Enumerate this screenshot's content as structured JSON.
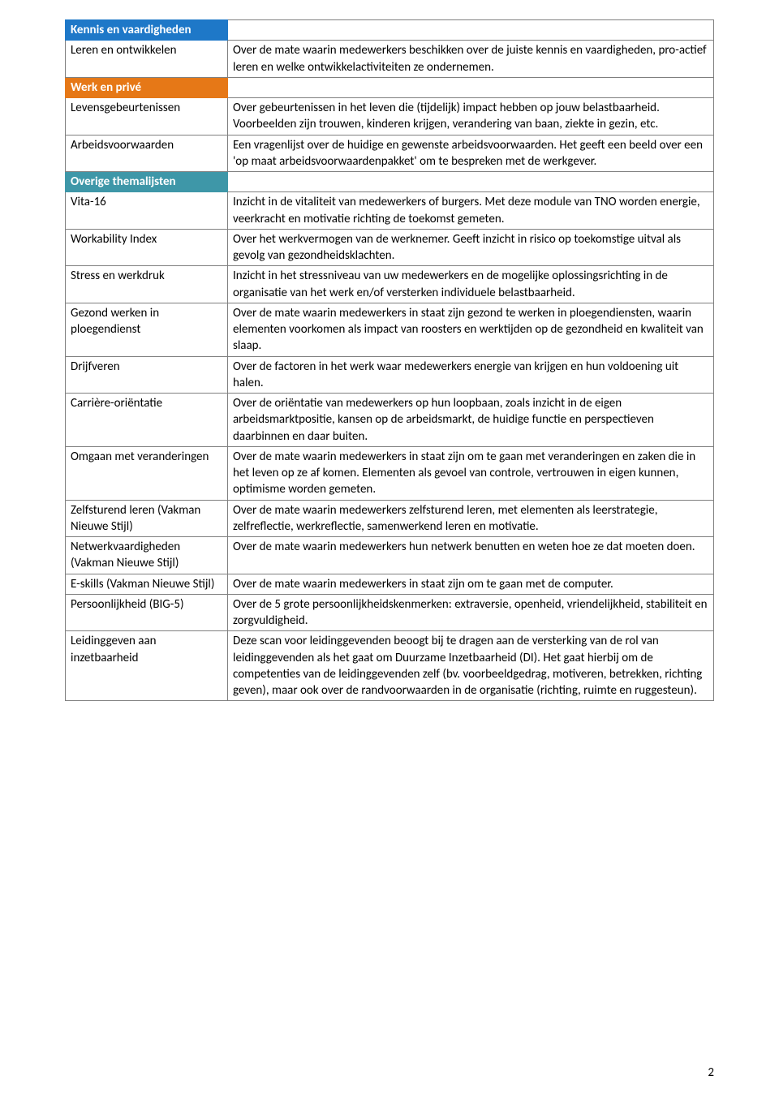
{
  "sections": {
    "blue": {
      "title": "Kennis en vaardigheden"
    },
    "orange": {
      "title": "Werk en privé"
    },
    "teal": {
      "title": "Overige themalijsten"
    }
  },
  "rows": {
    "leren": {
      "label": "Leren en ontwikkelen",
      "desc": "Over de mate waarin medewerkers beschikken over de juiste kennis en vaardigheden, pro-actief leren en welke ontwikkelactiviteiten ze ondernemen."
    },
    "levens": {
      "label": "Levensgebeurtenissen",
      "desc": "Over gebeurtenissen in het leven die (tijdelijk) impact hebben op jouw belastbaarheid. Voorbeelden zijn trouwen, kinderen krijgen, verandering van baan, ziekte in gezin, etc."
    },
    "arbeids": {
      "label": "Arbeidsvoorwaarden",
      "desc": "Een vragenlijst over de huidige en gewenste arbeidsvoorwaarden. Het geeft een beeld over een 'op maat arbeidsvoorwaardenpakket' om te bespreken met de werkgever."
    },
    "vita": {
      "label": "Vita-16",
      "desc": "Inzicht in de vitaliteit van medewerkers of burgers. Met deze module van TNO worden energie, veerkracht en motivatie richting de toekomst gemeten."
    },
    "workability": {
      "label": "Workability Index",
      "desc": "Over het werkvermogen van de werknemer. Geeft inzicht in risico op toekomstige uitval als gevolg van gezondheidsklachten."
    },
    "stress": {
      "label": "Stress en werkdruk",
      "desc": "Inzicht in het stressniveau van uw medewerkers en de mogelijke oplossingsrichting in de organisatie van het werk en/of versterken individuele belastbaarheid."
    },
    "gezond": {
      "label": "Gezond werken in ploegendienst",
      "desc": "Over de mate waarin medewerkers in staat zijn gezond te werken in ploegendiensten, waarin elementen voorkomen als impact van roosters en werktijden op de gezondheid en kwaliteit van slaap."
    },
    "drijf": {
      "label": "Drijfveren",
      "desc": "Over de factoren in het werk waar medewerkers energie van krijgen en hun voldoening uit halen."
    },
    "carriere": {
      "label": "Carrière-oriëntatie",
      "desc": "Over de oriëntatie van medewerkers op hun loopbaan, zoals inzicht in de eigen arbeidsmarktpositie, kansen op de arbeidsmarkt, de huidige functie en perspectieven daarbinnen en daar buiten."
    },
    "omgaan": {
      "label": "Omgaan met veranderingen",
      "desc": "Over de mate waarin medewerkers in staat zijn om te gaan met veranderingen en zaken die in het leven op ze af komen. Elementen als gevoel van controle, vertrouwen in eigen kunnen, optimisme worden gemeten."
    },
    "zelf": {
      "label": "Zelfsturend leren (Vakman Nieuwe Stijl)",
      "desc": "Over de mate waarin medewerkers zelfsturend leren, met elementen als leerstrategie, zelfreflectie, werkreflectie, samenwerkend leren en motivatie."
    },
    "netwerk": {
      "label": "Netwerkvaardigheden (Vakman Nieuwe Stijl)",
      "desc": "Over de mate waarin medewerkers hun netwerk benutten en weten hoe ze dat moeten doen."
    },
    "eskills": {
      "label": "E-skills (Vakman Nieuwe Stijl)",
      "desc": "Over de mate waarin medewerkers in staat zijn om te gaan met de computer."
    },
    "big5": {
      "label": "Persoonlijkheid (BIG-5)",
      "desc": "Over de 5 grote persoonlijkheidskenmerken: extraversie, openheid, vriendelijkheid, stabiliteit en zorgvuldigheid."
    },
    "leiding": {
      "label": "Leidinggeven aan inzetbaarheid",
      "desc": "Deze scan voor leidinggevenden beoogt bij te dragen aan de versterking van de rol van leidinggevenden als het gaat om Duurzame Inzetbaarheid (DI). Het gaat hierbij om de competenties van de leidinggevenden zelf (bv. voorbeeldgedrag, motiveren, betrekken, richting geven), maar ook over de randvoorwaarden in de organisatie (richting, ruimte en ruggesteun)."
    }
  },
  "colors": {
    "blue": "#1e78c8",
    "orange": "#e67817",
    "teal": "#3e97a8",
    "border": "#7f7f7f"
  },
  "page_number": "2"
}
